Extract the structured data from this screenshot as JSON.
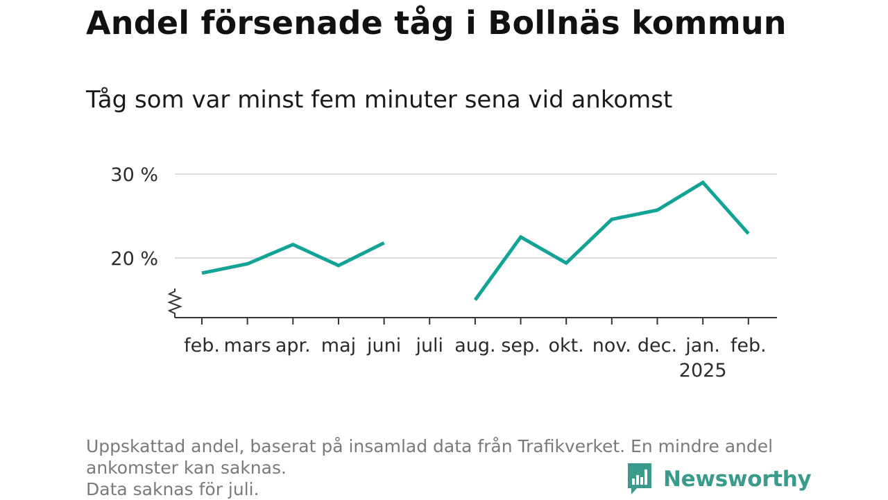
{
  "title": "Andel försenade tåg i Bollnäs kommun",
  "subtitle": "Tåg som var minst fem minuter sena vid ankomst",
  "footer": {
    "line1": "Uppskattad andel, baserat på insamlad data från Trafikverket. En mindre andel",
    "line2": "ankomster kan saknas.",
    "line3": "Data saknas för juli."
  },
  "logo": {
    "name": "Newsworthy",
    "icon": "newsworthy-bar-chart-icon"
  },
  "colors": {
    "line": "#12a397",
    "grid": "#dddddd",
    "axis": "#333333",
    "logo": "#3a9a8c"
  },
  "chart_data": {
    "type": "line",
    "categories": [
      "feb.",
      "mars",
      "apr.",
      "maj",
      "juni",
      "juli",
      "aug.",
      "sep.",
      "okt.",
      "nov.",
      "dec.",
      "jan.",
      "feb."
    ],
    "year_label": {
      "under": "jan.",
      "text": "2025"
    },
    "series": [
      {
        "values": [
          18.2,
          19.3,
          21.6,
          19.1,
          21.8,
          null,
          15.0,
          22.5,
          19.4,
          24.6,
          25.7,
          29.0,
          22.9
        ]
      }
    ],
    "y_ticks": [
      {
        "value": 20,
        "label": "20 %"
      },
      {
        "value": 30,
        "label": "30 %"
      }
    ],
    "ylim": [
      13.0,
      31.0
    ],
    "axis_break": true,
    "grid": "horizontal"
  }
}
